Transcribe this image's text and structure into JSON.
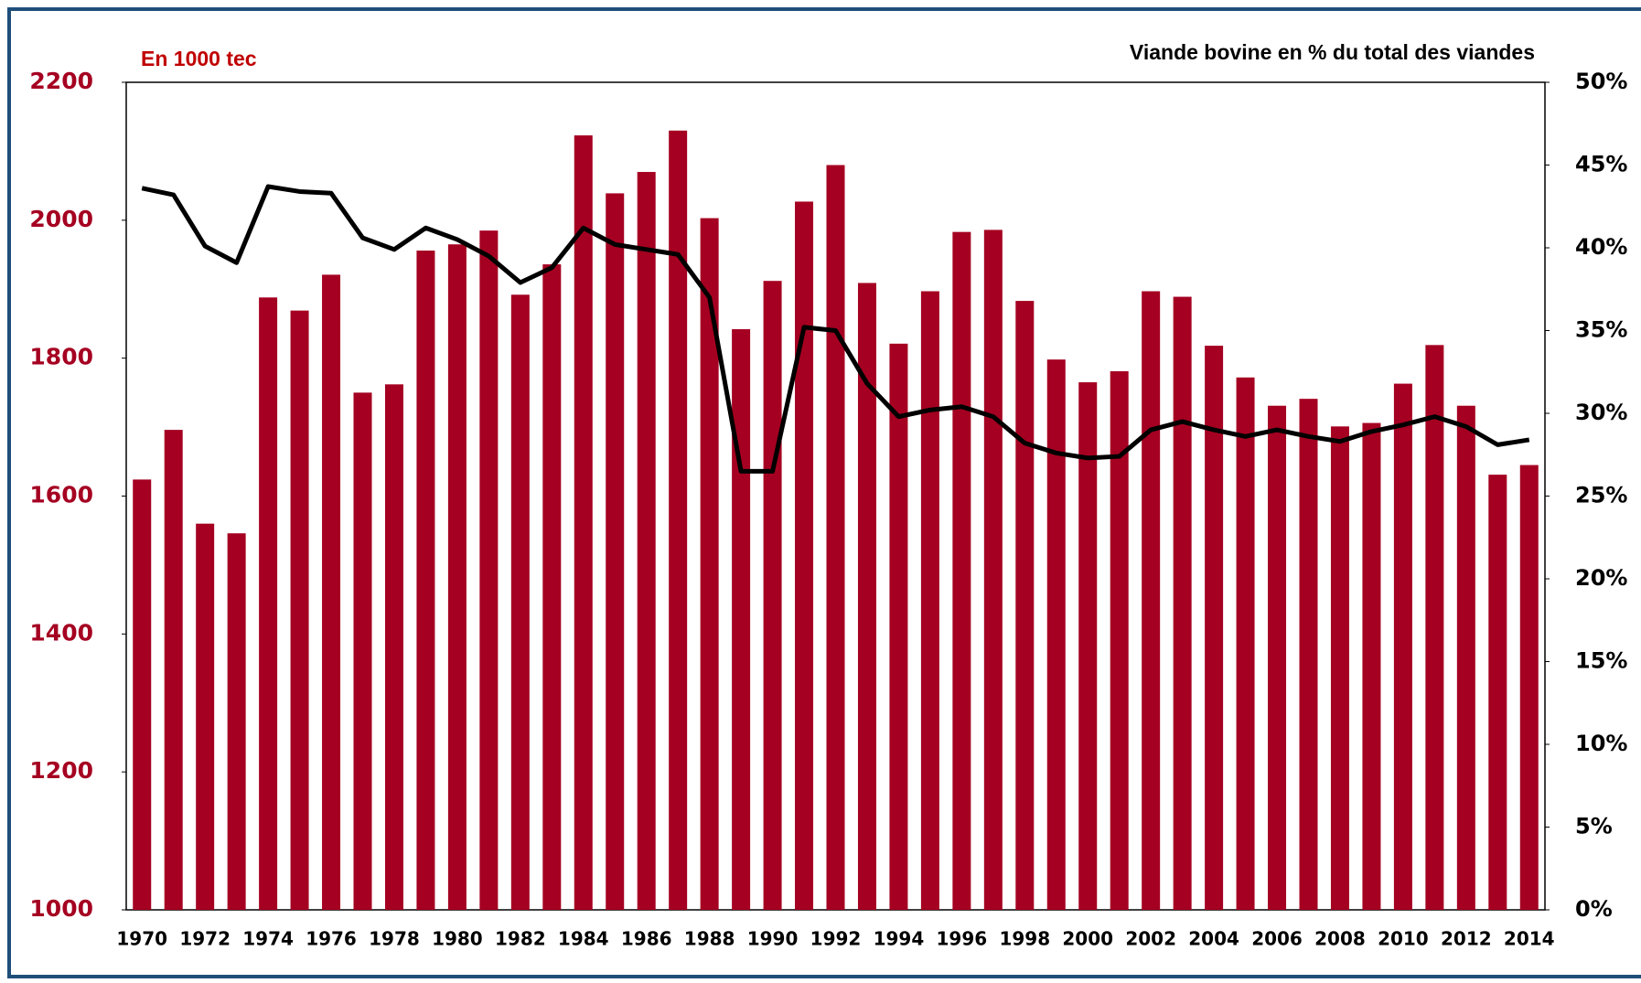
{
  "chart_data": {
    "type": "bar_line",
    "y_label": "En 1000 tec",
    "y2_label": "Viande bovine en % du total des viandes",
    "categories": [
      "1970",
      null,
      "1972",
      null,
      "1974",
      null,
      "1976",
      null,
      "1978",
      null,
      "1980",
      null,
      "1982",
      null,
      "1984",
      null,
      "1986",
      null,
      "1988",
      null,
      "1990",
      null,
      "1992",
      null,
      "1994",
      null,
      "1996",
      null,
      "1998",
      null,
      "2000",
      null,
      "2002",
      null,
      "2004",
      null,
      "2006",
      null,
      "2008",
      null,
      "2010",
      null,
      "2012",
      null,
      "2014"
    ],
    "series": [
      {
        "type": "bar",
        "color": "#a50021",
        "values": [
          1624,
          1696,
          1560,
          1546,
          1888,
          1869,
          1921,
          1750,
          1762,
          1956,
          1965,
          1985,
          1892,
          1936,
          2123,
          2039,
          2070,
          2130,
          2003,
          1842,
          1912,
          2027,
          2080,
          1909,
          1821,
          1897,
          1983,
          1986,
          1883,
          1798,
          1765,
          1781,
          1897,
          1889,
          1818,
          1772,
          1731,
          1741,
          1701,
          1706,
          1763,
          1819,
          1731,
          1631,
          1645
        ]
      },
      {
        "type": "line",
        "axis": "y2",
        "color": "#000000",
        "values": [
          43.6,
          43.2,
          40.1,
          39.1,
          43.7,
          43.4,
          43.3,
          40.6,
          39.9,
          41.2,
          40.5,
          39.5,
          37.9,
          38.8,
          41.2,
          40.2,
          39.9,
          39.6,
          37.0,
          26.5,
          26.5,
          35.2,
          35.0,
          31.8,
          29.8,
          30.2,
          30.4,
          29.8,
          28.2,
          27.6,
          27.3,
          27.4,
          29.0,
          29.5,
          29.0,
          28.6,
          29.0,
          28.6,
          28.3,
          28.9,
          29.3,
          29.8,
          29.2,
          28.1,
          28.4
        ]
      }
    ],
    "ylim": [
      1000,
      2200
    ],
    "yticks": [
      1000,
      1200,
      1400,
      1600,
      1800,
      2000,
      2200
    ],
    "y2lim": [
      0,
      50
    ],
    "y2ticks": [
      {
        "value": 0,
        "label": "0%"
      },
      {
        "value": 5,
        "label": "5%"
      },
      {
        "value": 10,
        "label": "10%"
      },
      {
        "value": 15,
        "label": "15%"
      },
      {
        "value": 20,
        "label": "20%"
      },
      {
        "value": 25,
        "label": "25%"
      },
      {
        "value": 30,
        "label": "30%"
      },
      {
        "value": 35,
        "label": "35%"
      },
      {
        "value": 40,
        "label": "40%"
      },
      {
        "value": 45,
        "label": "45%"
      },
      {
        "value": 50,
        "label": "50%"
      }
    ],
    "grid": false
  }
}
